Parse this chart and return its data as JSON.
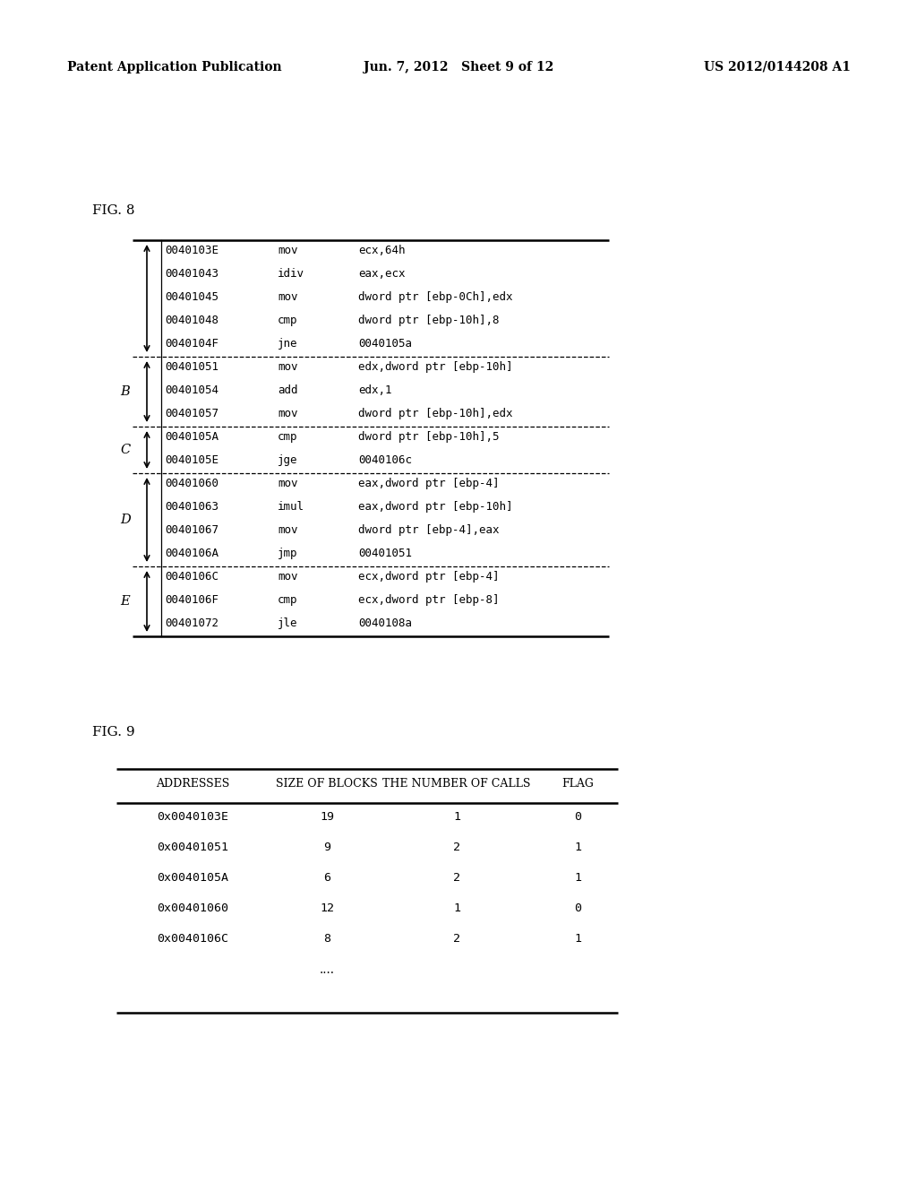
{
  "header_left": "Patent Application Publication",
  "header_center": "Jun. 7, 2012   Sheet 9 of 12",
  "header_right": "US 2012/0144208 A1",
  "fig8_label": "FIG. 8",
  "fig9_label": "FIG. 9",
  "fig8_rows": [
    {
      "addr": "0040103E",
      "op": "mov",
      "operand": "ecx,64h"
    },
    {
      "addr": "00401043",
      "op": "idiv",
      "operand": "eax,ecx"
    },
    {
      "addr": "00401045",
      "op": "mov",
      "operand": "dword ptr [ebp-0Ch],edx"
    },
    {
      "addr": "00401048",
      "op": "cmp",
      "operand": "dword ptr [ebp-10h],8"
    },
    {
      "addr": "0040104F",
      "op": "jne",
      "operand": "0040105a"
    },
    {
      "addr": "00401051",
      "op": "mov",
      "operand": "edx,dword ptr [ebp-10h]"
    },
    {
      "addr": "00401054",
      "op": "add",
      "operand": "edx,1"
    },
    {
      "addr": "00401057",
      "op": "mov",
      "operand": "dword ptr [ebp-10h],edx"
    },
    {
      "addr": "0040105A",
      "op": "cmp",
      "operand": "dword ptr [ebp-10h],5"
    },
    {
      "addr": "0040105E",
      "op": "jge",
      "operand": "0040106c"
    },
    {
      "addr": "00401060",
      "op": "mov",
      "operand": "eax,dword ptr [ebp-4]"
    },
    {
      "addr": "00401063",
      "op": "imul",
      "operand": "eax,dword ptr [ebp-10h]"
    },
    {
      "addr": "00401067",
      "op": "mov",
      "operand": "dword ptr [ebp-4],eax"
    },
    {
      "addr": "0040106A",
      "op": "jmp",
      "operand": "00401051"
    },
    {
      "addr": "0040106C",
      "op": "mov",
      "operand": "ecx,dword ptr [ebp-4]"
    },
    {
      "addr": "0040106F",
      "op": "cmp",
      "operand": "ecx,dword ptr [ebp-8]"
    },
    {
      "addr": "00401072",
      "op": "jle",
      "operand": "0040108a"
    }
  ],
  "fig8_blocks": [
    {
      "label": "",
      "start": 0,
      "end": 4
    },
    {
      "label": "B",
      "start": 5,
      "end": 7
    },
    {
      "label": "C",
      "start": 8,
      "end": 9
    },
    {
      "label": "D",
      "start": 10,
      "end": 13
    },
    {
      "label": "E",
      "start": 14,
      "end": 16
    }
  ],
  "block_separators": [
    5,
    8,
    10,
    14
  ],
  "fig9_headers": [
    "ADDRESSES",
    "SIZE OF BLOCKS",
    "THE NUMBER OF CALLS",
    "FLAG"
  ],
  "fig9_rows": [
    [
      "0x0040103E",
      "19",
      "1",
      "0"
    ],
    [
      "0x00401051",
      "9",
      "2",
      "1"
    ],
    [
      "0x0040105A",
      "6",
      "2",
      "1"
    ],
    [
      "0x00401060",
      "12",
      "1",
      "0"
    ],
    [
      "0x0040106C",
      "8",
      "2",
      "1"
    ]
  ],
  "background": "#ffffff",
  "text_color": "#000000"
}
